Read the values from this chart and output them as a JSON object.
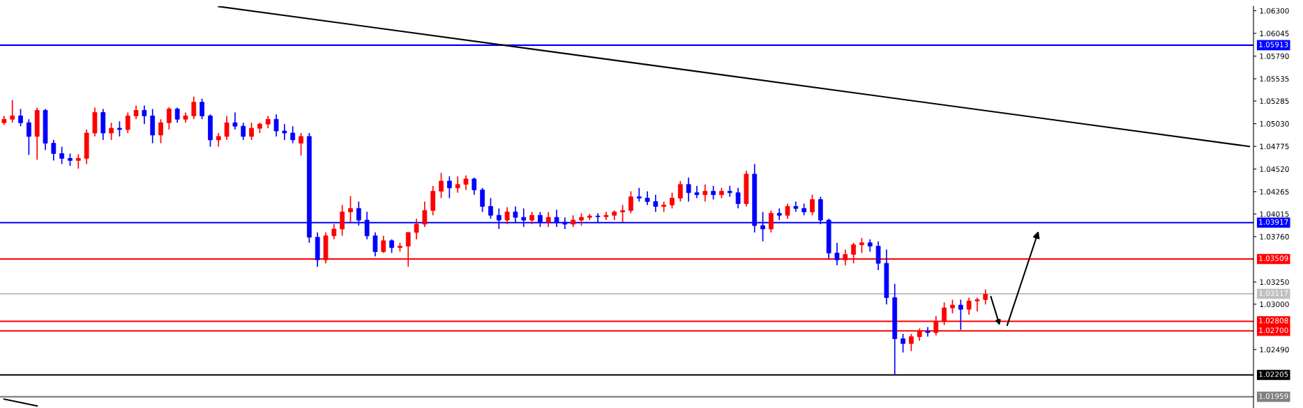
{
  "chart_data": {
    "type": "candlestick",
    "categories": [
      null,
      null,
      null,
      null,
      null,
      null,
      null,
      null,
      null,
      null,
      null,
      null,
      null,
      null,
      null,
      null,
      null,
      null,
      null,
      null,
      null,
      null,
      null,
      null,
      null,
      null,
      null,
      null,
      null,
      null,
      null,
      null,
      null,
      null,
      null,
      null,
      null,
      null,
      null,
      null,
      null,
      null,
      null,
      null,
      null,
      null,
      null,
      null,
      null,
      null,
      null,
      null,
      null,
      null,
      null,
      null,
      null,
      null,
      null,
      null,
      null,
      null,
      null,
      null,
      null,
      null,
      null,
      null,
      null,
      null,
      null,
      null,
      null,
      null,
      null,
      null,
      null,
      null,
      null,
      null,
      null,
      null,
      null,
      null,
      null,
      null,
      null,
      null,
      null,
      null,
      null,
      null,
      null,
      null,
      null,
      null,
      null,
      null,
      null,
      null,
      null,
      null,
      null,
      null,
      null,
      null,
      null,
      null,
      null,
      null,
      null,
      null,
      null,
      null,
      null,
      null,
      null,
      null,
      null,
      null,
      null,
      null,
      null,
      null,
      null,
      null,
      null,
      null,
      null,
      null,
      null,
      null,
      null,
      null,
      null,
      null,
      null,
      null,
      null,
      null,
      null,
      null,
      null,
      null,
      null,
      null,
      null,
      null,
      null,
      null,
      null,
      null
    ],
    "ohlc": [
      [
        1.05041,
        1.05118,
        1.05018,
        1.0508
      ],
      [
        1.0508,
        1.05296,
        1.05041,
        1.05118
      ],
      [
        1.05118,
        1.05195,
        1.05002,
        1.05041
      ],
      [
        1.05041,
        1.0508,
        1.04679,
        1.04887
      ],
      [
        1.04887,
        1.05211,
        1.04625,
        1.0518
      ],
      [
        1.0518,
        1.05195,
        1.04733,
        1.0481
      ],
      [
        1.0481,
        1.04848,
        1.04617,
        1.04694
      ],
      [
        1.04694,
        1.04771,
        1.04578,
        1.0464
      ],
      [
        1.0464,
        1.04694,
        1.04555,
        1.04617
      ],
      [
        1.04617,
        1.04686,
        1.04524,
        1.0464
      ],
      [
        1.0464,
        1.04964,
        1.04578,
        1.04925
      ],
      [
        1.04925,
        1.05211,
        1.04887,
        1.05157
      ],
      [
        1.05157,
        1.05195,
        1.04848,
        1.04925
      ],
      [
        1.04925,
        1.05041,
        1.04848,
        1.04979
      ],
      [
        1.04979,
        1.05056,
        1.04887,
        1.04964
      ],
      [
        1.04964,
        1.05157,
        1.04925,
        1.05118
      ],
      [
        1.05118,
        1.05234,
        1.0508,
        1.0518
      ],
      [
        1.0518,
        1.05234,
        1.05026,
        1.05118
      ],
      [
        1.05118,
        1.05195,
        1.0481,
        1.04902
      ],
      [
        1.04902,
        1.0508,
        1.0481,
        1.05041
      ],
      [
        1.05041,
        1.05218,
        1.04964,
        1.05195
      ],
      [
        1.05195,
        1.05211,
        1.05041,
        1.0508
      ],
      [
        1.0508,
        1.05157,
        1.05041,
        1.05118
      ],
      [
        1.05118,
        1.05334,
        1.0508,
        1.05272
      ],
      [
        1.05272,
        1.05311,
        1.0508,
        1.05118
      ],
      [
        1.05118,
        1.05134,
        1.04771,
        1.04848
      ],
      [
        1.04848,
        1.04925,
        1.04771,
        1.04887
      ],
      [
        1.04887,
        1.05118,
        1.04848,
        1.05041
      ],
      [
        1.05041,
        1.05157,
        1.04964,
        1.05002
      ],
      [
        1.05002,
        1.05041,
        1.04848,
        1.04887
      ],
      [
        1.04887,
        1.05041,
        1.04848,
        1.04979
      ],
      [
        1.04979,
        1.05041,
        1.04925,
        1.05026
      ],
      [
        1.05026,
        1.05118,
        1.04979,
        1.0508
      ],
      [
        1.0508,
        1.05134,
        1.04887,
        1.04948
      ],
      [
        1.04948,
        1.05026,
        1.04848,
        1.04925
      ],
      [
        1.04925,
        1.05002,
        1.0481,
        1.04848
      ],
      [
        1.0481,
        1.04925,
        1.04671,
        1.04887
      ],
      [
        1.04887,
        1.04925,
        1.03691,
        1.03753
      ],
      [
        1.03753,
        1.03807,
        1.03421,
        1.03499
      ],
      [
        1.03499,
        1.03807,
        1.0346,
        1.03769
      ],
      [
        1.03769,
        1.039,
        1.0373,
        1.03846
      ],
      [
        1.03846,
        1.04116,
        1.03769,
        1.04038
      ],
      [
        1.04038,
        1.04216,
        1.03923,
        1.04077
      ],
      [
        1.04077,
        1.04154,
        1.03884,
        1.03946
      ],
      [
        1.03946,
        1.04038,
        1.0373,
        1.03769
      ],
      [
        1.03769,
        1.03807,
        1.03537,
        1.03591
      ],
      [
        1.03591,
        1.03769,
        1.03576,
        1.03714
      ],
      [
        1.03714,
        1.0373,
        1.03576,
        1.03637
      ],
      [
        1.03637,
        1.03691,
        1.03591,
        1.03653
      ],
      [
        1.03653,
        1.03807,
        1.03421,
        1.03807
      ],
      [
        1.03807,
        1.03961,
        1.0373,
        1.039
      ],
      [
        1.039,
        1.04154,
        1.03869,
        1.04054
      ],
      [
        1.04054,
        1.04331,
        1.04,
        1.0427
      ],
      [
        1.0427,
        1.04478,
        1.04193,
        1.04385
      ],
      [
        1.04385,
        1.04439,
        1.04193,
        1.04308
      ],
      [
        1.04308,
        1.04439,
        1.04254,
        1.04347
      ],
      [
        1.04347,
        1.04447,
        1.04285,
        1.04409
      ],
      [
        1.04409,
        1.04424,
        1.04231,
        1.04285
      ],
      [
        1.04285,
        1.04308,
        1.04038,
        1.041
      ],
      [
        1.041,
        1.04193,
        1.03961,
        1.04
      ],
      [
        1.04,
        1.04077,
        1.03846,
        1.03946
      ],
      [
        1.03946,
        1.04092,
        1.039,
        1.04038
      ],
      [
        1.04038,
        1.041,
        1.03923,
        1.03977
      ],
      [
        1.03977,
        1.04077,
        1.03869,
        1.03946
      ],
      [
        1.03946,
        1.04038,
        1.039,
        1.04
      ],
      [
        1.04,
        1.04038,
        1.03869,
        1.03923
      ],
      [
        1.03923,
        1.04038,
        1.03869,
        1.03977
      ],
      [
        1.03977,
        1.04062,
        1.03869,
        1.03923
      ],
      [
        1.03923,
        1.03977,
        1.03846,
        1.039
      ],
      [
        1.039,
        1.04,
        1.03869,
        1.03946
      ],
      [
        1.03946,
        1.04023,
        1.03884,
        1.03977
      ],
      [
        1.03977,
        1.04015,
        1.03946,
        1.03992
      ],
      [
        1.03992,
        1.04023,
        1.03923,
        1.03984
      ],
      [
        1.03984,
        1.04038,
        1.03946,
        1.04
      ],
      [
        1.04,
        1.04054,
        1.03946,
        1.04038
      ],
      [
        1.04038,
        1.04116,
        1.03923,
        1.04054
      ],
      [
        1.04054,
        1.0427,
        1.04023,
        1.04208
      ],
      [
        1.04208,
        1.04308,
        1.04154,
        1.04193
      ],
      [
        1.04193,
        1.0427,
        1.04116,
        1.04154
      ],
      [
        1.04154,
        1.04231,
        1.04038,
        1.041
      ],
      [
        1.041,
        1.04154,
        1.04038,
        1.04116
      ],
      [
        1.04116,
        1.04254,
        1.04077,
        1.04193
      ],
      [
        1.04193,
        1.04385,
        1.04154,
        1.04347
      ],
      [
        1.04347,
        1.04424,
        1.04154,
        1.04254
      ],
      [
        1.04254,
        1.04331,
        1.04193,
        1.04231
      ],
      [
        1.04231,
        1.04347,
        1.04154,
        1.0427
      ],
      [
        1.0427,
        1.04331,
        1.04177,
        1.04231
      ],
      [
        1.04231,
        1.04308,
        1.04193,
        1.0427
      ],
      [
        1.0427,
        1.04331,
        1.04208,
        1.04254
      ],
      [
        1.04254,
        1.04308,
        1.04077,
        1.04131
      ],
      [
        1.04131,
        1.04501,
        1.041,
        1.04463
      ],
      [
        1.04463,
        1.04578,
        1.03807,
        1.03884
      ],
      [
        1.03884,
        1.04038,
        1.03707,
        1.03846
      ],
      [
        1.03846,
        1.04054,
        1.03807,
        1.04023
      ],
      [
        1.04023,
        1.04077,
        1.03946,
        1.04
      ],
      [
        1.04,
        1.04131,
        1.03961,
        1.041
      ],
      [
        1.041,
        1.04154,
        1.04038,
        1.04077
      ],
      [
        1.04077,
        1.04131,
        1.04,
        1.04038
      ],
      [
        1.04038,
        1.04231,
        1.04,
        1.04177
      ],
      [
        1.04177,
        1.04208,
        1.039,
        1.03946
      ],
      [
        1.03946,
        1.03961,
        1.03514,
        1.03576
      ],
      [
        1.03576,
        1.03691,
        1.03437,
        1.03499
      ],
      [
        1.03499,
        1.03614,
        1.03437,
        1.0356
      ],
      [
        1.0356,
        1.03691,
        1.0346,
        1.03668
      ],
      [
        1.03668,
        1.03745,
        1.03576,
        1.03691
      ],
      [
        1.03691,
        1.0373,
        1.03591,
        1.03653
      ],
      [
        1.03653,
        1.03707,
        1.03383,
        1.0346
      ],
      [
        1.0346,
        1.03614,
        1.02997,
        1.03074
      ],
      [
        1.03074,
        1.03229,
        1.02205,
        1.02612
      ],
      [
        1.02612,
        1.02666,
        1.02457,
        1.02558
      ],
      [
        1.02558,
        1.02666,
        1.02473,
        1.02635
      ],
      [
        1.02635,
        1.02727,
        1.02589,
        1.02697
      ],
      [
        1.02697,
        1.02743,
        1.02635,
        1.02681
      ],
      [
        1.02681,
        1.02866,
        1.0265,
        1.02805
      ],
      [
        1.02805,
        1.0302,
        1.02766,
        1.02959
      ],
      [
        1.02959,
        1.03051,
        1.02897,
        1.0299
      ],
      [
        1.0299,
        1.03051,
        1.02712,
        1.02943
      ],
      [
        1.02943,
        1.03074,
        1.02882,
        1.03036
      ],
      [
        1.03036,
        1.03074,
        1.0292,
        1.03051
      ],
      [
        1.03051,
        1.03167,
        1.02997,
        1.03113
      ],
      null,
      null,
      null,
      null,
      null,
      null,
      null,
      null,
      null,
      null,
      null,
      null,
      null,
      null,
      null,
      null,
      null,
      null,
      null,
      null,
      null,
      null,
      null,
      null,
      null,
      null,
      null,
      null,
      null,
      null,
      null,
      null
    ],
    "colors": [
      "#ff0000",
      "#ff0000",
      "#0000ff",
      "#0000ff",
      "#ff0000",
      "#0000ff",
      "#0000ff",
      "#0000ff",
      "#0000ff",
      "#ff0000",
      "#ff0000",
      "#ff0000",
      "#0000ff",
      "#ff0000",
      "#0000ff",
      "#ff0000",
      "#ff0000",
      "#0000ff",
      "#0000ff",
      "#ff0000",
      "#ff0000",
      "#0000ff",
      "#ff0000",
      "#ff0000",
      "#0000ff",
      "#0000ff",
      "#ff0000",
      "#ff0000",
      "#0000ff",
      "#0000ff",
      "#ff0000",
      "#ff0000",
      "#ff0000",
      "#0000ff",
      "#0000ff",
      "#0000ff",
      "#ff0000",
      "#0000ff",
      "#0000ff",
      "#ff0000",
      "#ff0000",
      "#ff0000",
      "#ff0000",
      "#0000ff",
      "#0000ff",
      "#0000ff",
      "#ff0000",
      "#0000ff",
      "#ff0000",
      "#ff0000",
      "#ff0000",
      "#ff0000",
      "#ff0000",
      "#ff0000",
      "#0000ff",
      "#ff0000",
      "#ff0000",
      "#0000ff",
      "#0000ff",
      "#0000ff",
      "#0000ff",
      "#ff0000",
      "#0000ff",
      "#0000ff",
      "#ff0000",
      "#0000ff",
      "#ff0000",
      "#0000ff",
      "#0000ff",
      "#ff0000",
      "#ff0000",
      "#ff0000",
      "#0000ff",
      "#ff0000",
      "#ff0000",
      "#ff0000",
      "#ff0000",
      "#0000ff",
      "#0000ff",
      "#0000ff",
      "#ff0000",
      "#ff0000",
      "#ff0000",
      "#0000ff",
      "#0000ff",
      "#ff0000",
      "#0000ff",
      "#ff0000",
      "#0000ff",
      "#0000ff",
      "#ff0000",
      "#0000ff",
      "#0000ff",
      "#ff0000",
      "#0000ff",
      "#ff0000",
      "#0000ff",
      "#0000ff",
      "#ff0000",
      "#0000ff",
      "#0000ff",
      "#0000ff",
      "#ff0000",
      "#ff0000",
      "#ff0000",
      "#0000ff",
      "#0000ff",
      "#0000ff",
      "#0000ff",
      "#0000ff",
      "#ff0000",
      "#ff0000",
      "#0000ff",
      "#ff0000",
      "#ff0000",
      "#ff0000",
      "#0000ff",
      "#ff0000",
      "#ff0000",
      "#ff0000",
      null,
      null,
      null,
      null,
      null,
      null,
      null,
      null,
      null,
      null,
      null,
      null,
      null,
      null,
      null,
      null,
      null,
      null,
      null,
      null,
      null,
      null,
      null,
      null,
      null,
      null,
      null,
      null,
      null,
      null,
      null,
      null
    ],
    "series": [
      {
        "type": "line",
        "color": "#000000",
        "values": [
          null,
          null,
          null,
          null,
          null,
          null,
          null,
          null,
          null,
          null,
          null,
          null,
          null,
          null,
          null,
          null,
          null,
          null,
          null,
          null,
          null,
          null,
          null,
          null,
          null,
          null,
          1.06348,
          null,
          null,
          null,
          null,
          null,
          null,
          null,
          null,
          null,
          null,
          null,
          null,
          null,
          null,
          null,
          null,
          null,
          null,
          null,
          null,
          null,
          null,
          null,
          null,
          null,
          null,
          null,
          null,
          null,
          null,
          null,
          null,
          null,
          null,
          null,
          null,
          null,
          null,
          null,
          null,
          null,
          null,
          null,
          null,
          null,
          null,
          null,
          null,
          null,
          null,
          null,
          null,
          null,
          null,
          null,
          null,
          null,
          null,
          null,
          null,
          null,
          null,
          null,
          null,
          null,
          null,
          null,
          null,
          null,
          null,
          null,
          null,
          null,
          null,
          null,
          null,
          null,
          null,
          null,
          null,
          null,
          null,
          null,
          null,
          null,
          null,
          null,
          null,
          null,
          null,
          null,
          null,
          null,
          null,
          null,
          null,
          null,
          null,
          null,
          null,
          null,
          null,
          null,
          null,
          null,
          null,
          null,
          null,
          null,
          null,
          null,
          null,
          null,
          null,
          null,
          null,
          null,
          null,
          null,
          null,
          null,
          null,
          null,
          null,
          1.04774
        ]
      },
      {
        "type": "line",
        "color": "#000000",
        "values": [
          1.01933,
          null,
          null,
          null,
          1.01856,
          null,
          null,
          null,
          null,
          null,
          null,
          null,
          null,
          null,
          null,
          null,
          null,
          null,
          null,
          null,
          null,
          null,
          null,
          null,
          null,
          null,
          null,
          null,
          null,
          null,
          null,
          null,
          null,
          null,
          null,
          null,
          null,
          null,
          null,
          null,
          null,
          null,
          null,
          null,
          null,
          null,
          null,
          null,
          null,
          null,
          null,
          null,
          null,
          null,
          null,
          null,
          null,
          null,
          null,
          null,
          null,
          null,
          null,
          null,
          null,
          null,
          null,
          null,
          null,
          null,
          null,
          null,
          null,
          null,
          null,
          null,
          null,
          null,
          null,
          null,
          null,
          null,
          null,
          null,
          null,
          null,
          null,
          null,
          null,
          null,
          null,
          null,
          null,
          null,
          null,
          null,
          null,
          null,
          null,
          null,
          null,
          null,
          null,
          null,
          null,
          null,
          null,
          null,
          null,
          null,
          null,
          null,
          null,
          null,
          null,
          null,
          null,
          null,
          null,
          null,
          null,
          null,
          null,
          null,
          null,
          null,
          null,
          null,
          null,
          null,
          null,
          null,
          null,
          null,
          null,
          null,
          null,
          null,
          null,
          null,
          null,
          null,
          null,
          null,
          null,
          null,
          null,
          null,
          null,
          null,
          null,
          null
        ]
      }
    ],
    "ylim": [
      1.01833,
      1.06352
    ],
    "yticks": [
      {
        "value": 1.063,
        "label": "1.06300"
      },
      1.06045,
      {
        "value": 1.0579,
        "label": "1.05790"
      },
      1.05535,
      1.05285,
      {
        "value": 1.0503,
        "label": "1.05030"
      },
      1.04775,
      {
        "value": 1.0452,
        "label": "1.04520"
      },
      1.04265,
      1.04015,
      {
        "value": 1.0376,
        "label": "1.03760"
      },
      {
        "value": 1.0325,
        "label": "1.03250"
      },
      {
        "value": 1.03,
        "label": "1.03000"
      },
      {
        "value": 1.0249,
        "label": "1.02490"
      }
    ],
    "ref_lines": [
      {
        "axis": "y",
        "value": 1.05913,
        "label": "1.05913",
        "color": "#0000ff"
      },
      {
        "axis": "y",
        "value": 1.03917,
        "label": "1.03917",
        "color": "#0000ff"
      },
      {
        "axis": "y",
        "value": 1.03509,
        "label": "1.03509",
        "color": "#ff0000"
      },
      {
        "axis": "y",
        "value": 1.03117,
        "label": "1.03117",
        "color": "#c0c0c0"
      },
      {
        "axis": "y",
        "value": 1.02808,
        "label": "1.02808",
        "color": "#ff0000"
      },
      {
        "axis": "y",
        "value": 1.027,
        "label": "1.02700",
        "color": "#ff0000"
      },
      {
        "axis": "y",
        "value": 1.02205,
        "label": "1.02205",
        "color": "#000000"
      },
      {
        "axis": "y",
        "value": 1.01959,
        "label": "1.01959",
        "color": "#808080"
      }
    ],
    "tick_labels": "y",
    "grid": false
  }
}
